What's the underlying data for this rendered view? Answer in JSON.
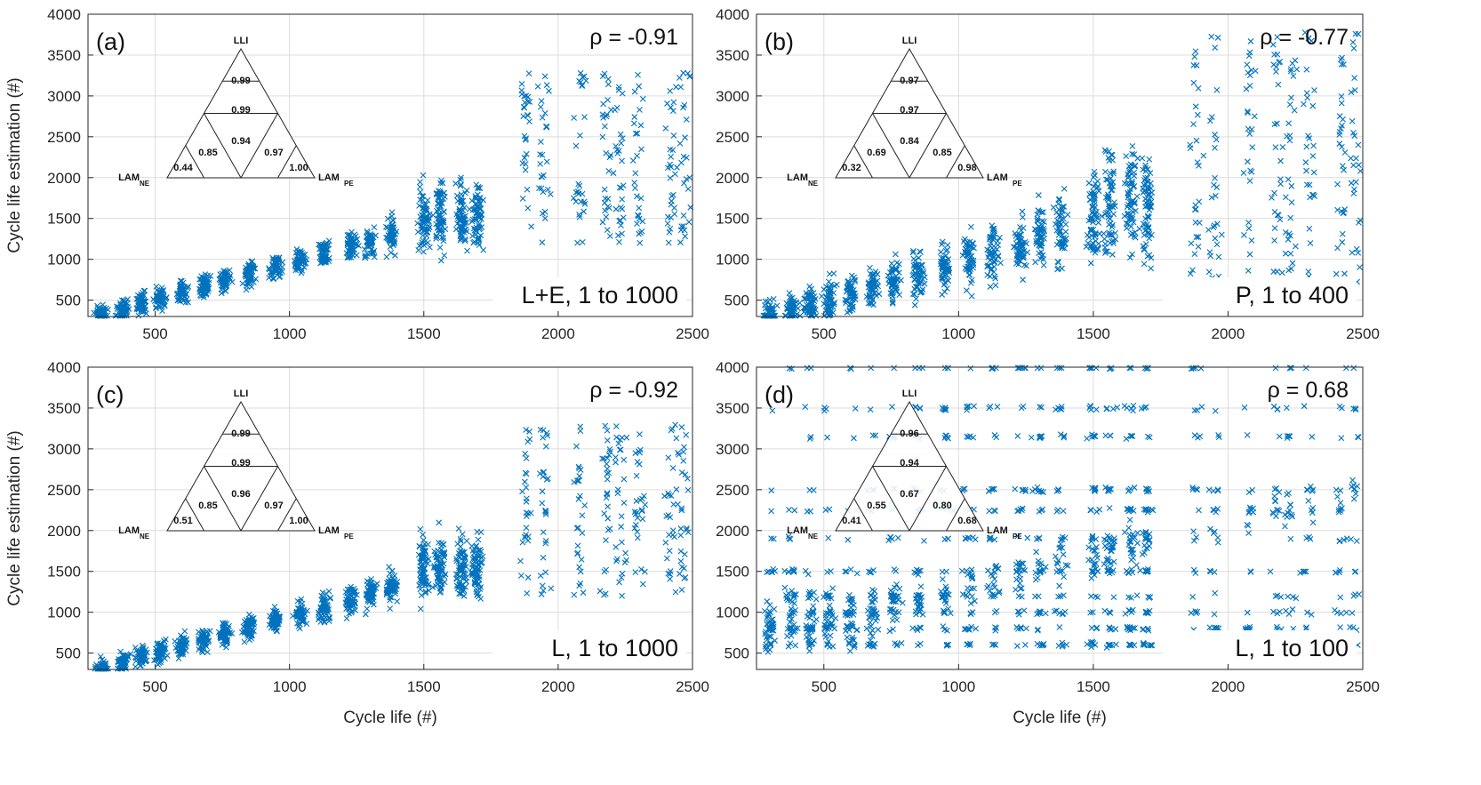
{
  "figure": {
    "xlabel": "Cycle life (#)",
    "ylabel": "Cycle life estimation (#)",
    "marker_color": "#0072BD"
  },
  "chart_data": [
    {
      "type": "scatter",
      "panel": "(a)",
      "rho": "ρ = -0.91",
      "corner_label": "L+E, 1 to 1000",
      "xlim": [
        250,
        2500
      ],
      "ylim": [
        300,
        4000
      ],
      "xticks": [
        500,
        1000,
        1500,
        2000,
        2500
      ],
      "yticks": [
        500,
        1000,
        1500,
        2000,
        2500,
        3000,
        3500,
        4000
      ],
      "xlabel": "",
      "ylabel": "Cycle life estimation (#)",
      "grid": true,
      "pattern": "strong",
      "ternary": {
        "top": "LLI",
        "left": "LAM",
        "left_sub": "NE",
        "right": "LAM",
        "right_sub": "PE",
        "values": [
          "0.99",
          "0.99",
          "0.85",
          "0.94",
          "0.97",
          "0.44",
          "1.00"
        ]
      }
    },
    {
      "type": "scatter",
      "panel": "(b)",
      "rho": "ρ = -0.77",
      "corner_label": "P,  1 to 400",
      "xlim": [
        250,
        2500
      ],
      "ylim": [
        300,
        4000
      ],
      "xticks": [
        500,
        1000,
        1500,
        2000,
        2500
      ],
      "yticks": [
        500,
        1000,
        1500,
        2000,
        2500,
        3000,
        3500,
        4000
      ],
      "xlabel": "",
      "ylabel": "",
      "grid": true,
      "pattern": "medium",
      "ternary": {
        "top": "LLI",
        "left": "LAM",
        "left_sub": "NE",
        "right": "LAM",
        "right_sub": "PE",
        "values": [
          "0.97",
          "0.97",
          "0.69",
          "0.84",
          "0.85",
          "0.32",
          "0.98"
        ]
      }
    },
    {
      "type": "scatter",
      "panel": "(c)",
      "rho": "ρ = -0.92",
      "corner_label": "L,  1 to 1000",
      "xlim": [
        250,
        2500
      ],
      "ylim": [
        300,
        4000
      ],
      "xticks": [
        500,
        1000,
        1500,
        2000,
        2500
      ],
      "yticks": [
        500,
        1000,
        1500,
        2000,
        2500,
        3000,
        3500,
        4000
      ],
      "xlabel": "Cycle life (#)",
      "ylabel": "Cycle life estimation (#)",
      "grid": true,
      "pattern": "strong",
      "ternary": {
        "top": "LLI",
        "left": "LAM",
        "left_sub": "NE",
        "right": "LAM",
        "right_sub": "PE",
        "values": [
          "0.99",
          "0.99",
          "0.85",
          "0.96",
          "0.97",
          "0.51",
          "1.00"
        ]
      }
    },
    {
      "type": "scatter",
      "panel": "(d)",
      "rho": "ρ = 0.68",
      "corner_label": "L,  1 to 100",
      "xlim": [
        250,
        2500
      ],
      "ylim": [
        300,
        4000
      ],
      "xticks": [
        500,
        1000,
        1500,
        2000,
        2500
      ],
      "yticks": [
        500,
        1000,
        1500,
        2000,
        2500,
        3000,
        3500,
        4000
      ],
      "xlabel": "Cycle life (#)",
      "ylabel": "",
      "grid": true,
      "pattern": "banded",
      "ternary": {
        "top": "LLI",
        "left": "LAM",
        "left_sub": "NE",
        "right": "LAM",
        "right_sub": "PE",
        "values": [
          "0.96",
          "0.94",
          "0.55",
          "0.67",
          "0.80",
          "0.41",
          "0.68"
        ]
      }
    }
  ]
}
